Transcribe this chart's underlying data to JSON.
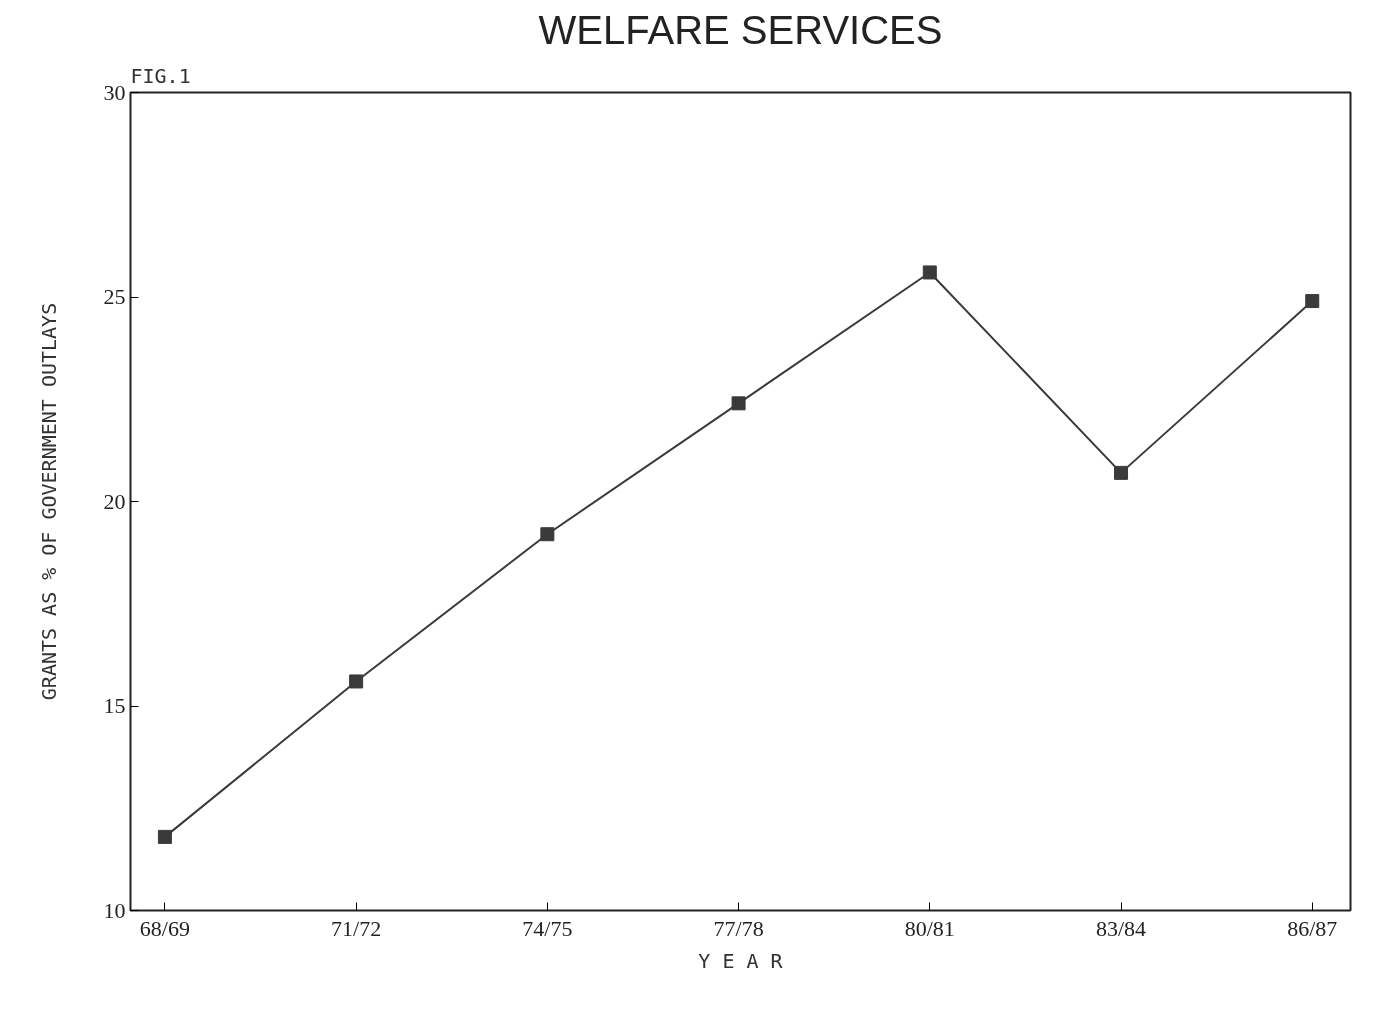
{
  "chart_data": {
    "type": "line",
    "title": "WELFARE SERVICES",
    "annotations": [
      "FIG.1"
    ],
    "xlabel": "Y E A R",
    "ylabel": "GRANTS AS % OF GOVERNMENT OUTLAYS",
    "categories": [
      "68/69",
      "71/72",
      "74/75",
      "77/78",
      "80/81",
      "83/84",
      "86/87"
    ],
    "series": [
      {
        "color": "#3a3a3a",
        "values": [
          11.8,
          15.6,
          19.2,
          22.4,
          25.6,
          20.7,
          24.9
        ]
      }
    ],
    "ylim": [
      10,
      30
    ],
    "yticks": [
      10,
      15,
      20,
      25,
      30
    ],
    "grid": false,
    "marker": "square",
    "line_style": "solid"
  }
}
